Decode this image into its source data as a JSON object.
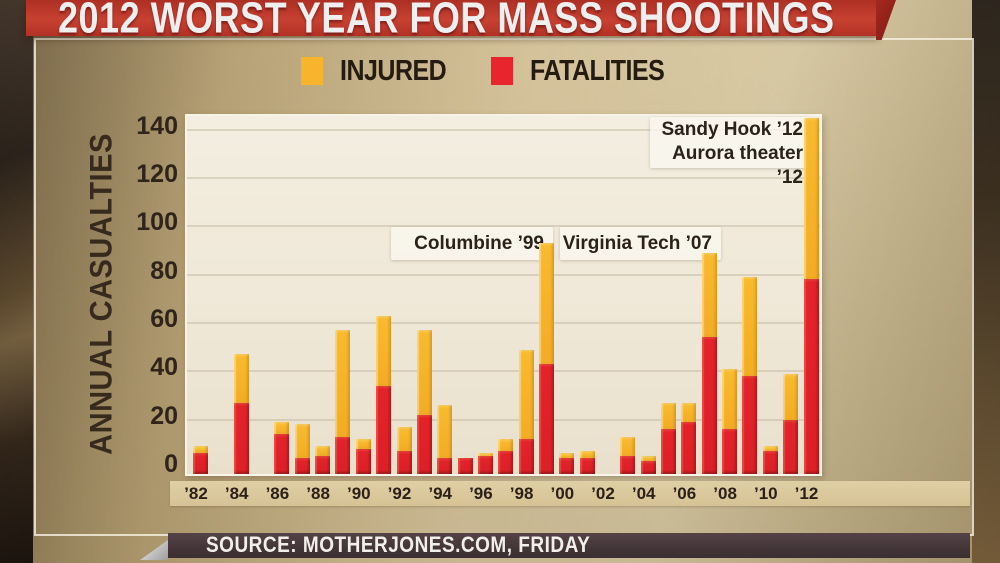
{
  "banner": {
    "title": "2012 WORST YEAR FOR MASS SHOOTINGS"
  },
  "legend": {
    "items": [
      {
        "label": "INJURED",
        "color": "#F7B42C"
      },
      {
        "label": "FATALITIES",
        "color": "#E8242C"
      }
    ]
  },
  "y_axis": {
    "title": "ANNUAL CASUALTIES",
    "ticks": [
      0,
      20,
      40,
      60,
      80,
      100,
      120,
      140
    ]
  },
  "x_axis": {
    "tick_labels": [
      "’82",
      "’84",
      "’86",
      "’88",
      "’90",
      "’92",
      "’94",
      "’96",
      "’98",
      "’00",
      "’02",
      "’04",
      "’06",
      "’08",
      "’10",
      "’12"
    ]
  },
  "callouts": {
    "columbine": "Columbine ’99",
    "virginia_tech": "Virginia Tech ’07",
    "sandy_hook": "Sandy Hook ’12",
    "aurora": "Aurora theater ’12"
  },
  "source": {
    "text": "SOURCE: MOTHERJONES.COM, FRIDAY"
  },
  "chart_data": {
    "type": "bar",
    "stacked": true,
    "title": "2012 WORST YEAR FOR MASS SHOOTINGS",
    "ylabel": "ANNUAL CASUALTIES",
    "ylim": [
      0,
      145
    ],
    "yticks": [
      0,
      20,
      40,
      60,
      80,
      100,
      120,
      140
    ],
    "grid": "horizontal",
    "legend_position": "top",
    "years": [
      1982,
      1983,
      1984,
      1985,
      1986,
      1987,
      1988,
      1989,
      1990,
      1991,
      1992,
      1993,
      1994,
      1995,
      1996,
      1997,
      1998,
      1999,
      2000,
      2001,
      2002,
      2003,
      2004,
      2005,
      2006,
      2007,
      2008,
      2009,
      2010,
      2011,
      2012
    ],
    "series": [
      {
        "name": "FATALITIES",
        "color": "#E2242B",
        "values": [
          6,
          0,
          27,
          0,
          14,
          4,
          5,
          13,
          8,
          34,
          7,
          22,
          4,
          4,
          5,
          7,
          12,
          43,
          4,
          4,
          0,
          5,
          3,
          16,
          19,
          54,
          16,
          38,
          7,
          20,
          78
        ]
      },
      {
        "name": "INJURED",
        "color": "#F7B42C",
        "values": [
          3,
          0,
          20,
          0,
          5,
          14,
          4,
          44,
          4,
          29,
          10,
          35,
          22,
          0,
          1,
          5,
          37,
          50,
          2,
          3,
          0,
          8,
          2,
          11,
          8,
          35,
          25,
          41,
          2,
          19,
          67
        ]
      }
    ],
    "annotated_events": [
      "Columbine ’99",
      "Virginia Tech ’07",
      "Sandy Hook ’12",
      "Aurora theater ’12"
    ]
  }
}
